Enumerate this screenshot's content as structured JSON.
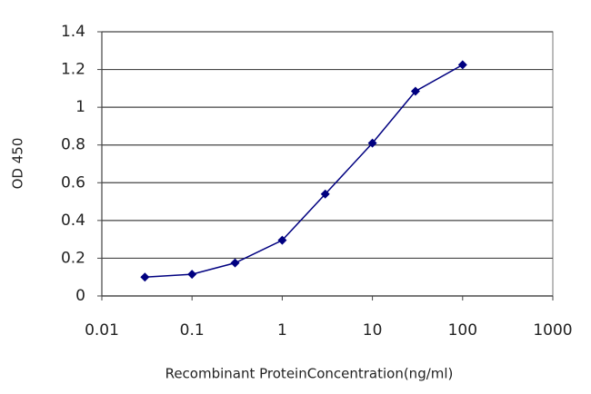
{
  "chart_data": {
    "type": "line",
    "x": [
      0.03,
      0.1,
      0.3,
      1,
      3,
      10,
      30,
      100
    ],
    "values": [
      0.1,
      0.115,
      0.175,
      0.295,
      0.54,
      0.81,
      1.085,
      1.225
    ],
    "color": "#000080",
    "x_label": "Recombinant ProteinConcentration(ng/ml)",
    "y_label": "OD 450",
    "xscale": "log",
    "xlim": [
      0.01,
      1000
    ],
    "xticks": [
      0.01,
      0.1,
      1,
      10,
      100,
      1000
    ],
    "ylim": [
      0,
      1.4
    ],
    "yticks": [
      0,
      0.2,
      0.4,
      0.6,
      0.8,
      1,
      1.2,
      1.4
    ],
    "grid": true
  }
}
